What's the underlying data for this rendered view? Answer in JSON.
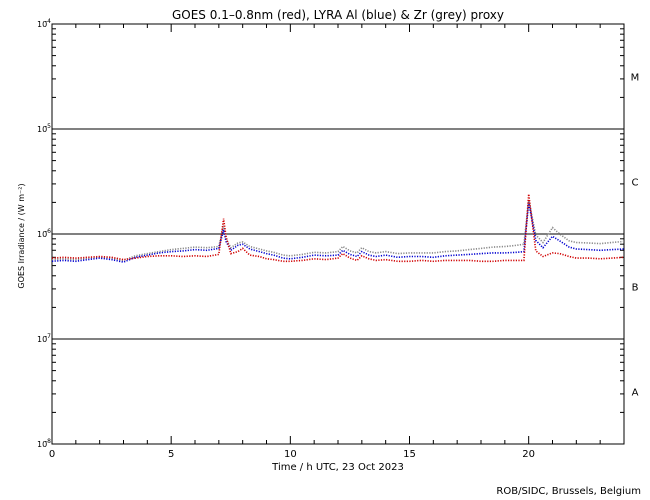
{
  "chart_data": {
    "type": "scatter",
    "title": "GOES 0.1–0.8nm (red), LYRA Al (blue) & Zr (grey) proxy",
    "xlabel": "Time / h UTC, 23 Oct 2023",
    "ylabel": "GOES Irradiance / (W m⁻²)",
    "credit": "ROB/SIDC, Brussels, Belgium",
    "xlim": [
      0,
      24
    ],
    "ylim": [
      1e-08,
      0.0001
    ],
    "yscale": "log",
    "x_ticks": [
      0,
      5,
      10,
      15,
      20
    ],
    "y_ticks": [
      {
        "value": 1e-08,
        "mant": "10",
        "exp": "-8"
      },
      {
        "value": 1e-07,
        "mant": "10",
        "exp": "-7"
      },
      {
        "value": 1e-06,
        "mant": "10",
        "exp": "-6"
      },
      {
        "value": 1e-05,
        "mant": "10",
        "exp": "-5"
      },
      {
        "value": 0.0001,
        "mant": "10",
        "exp": "-4"
      }
    ],
    "reference_lines": [
      1e-07,
      1e-06,
      1e-05
    ],
    "flare_classes": [
      {
        "label": "A",
        "value": 3.16e-08
      },
      {
        "label": "B",
        "value": 3.16e-07
      },
      {
        "label": "C",
        "value": 3.16e-06
      },
      {
        "label": "M",
        "value": 3.16e-05
      }
    ],
    "series": [
      {
        "color": "#d00000",
        "x": [
          0,
          0.5,
          1,
          1.5,
          2,
          2.5,
          3,
          3.5,
          4,
          4.5,
          5,
          5.5,
          6,
          6.5,
          7,
          7.2,
          7.3,
          7.5,
          7.8,
          8,
          8.3,
          8.7,
          9,
          9.3,
          9.7,
          10,
          10.5,
          11,
          11.5,
          12,
          12.2,
          12.5,
          12.8,
          13,
          13.3,
          13.6,
          14,
          14.5,
          15,
          15.5,
          16,
          16.5,
          17,
          17.5,
          18,
          18.5,
          19,
          19.5,
          19.8,
          20,
          20.3,
          20.6,
          21,
          21.3,
          21.7,
          22,
          22.5,
          23,
          23.5,
          24
        ],
        "y": [
          5.9e-07,
          6e-07,
          5.9e-07,
          6e-07,
          6.1e-07,
          6e-07,
          5.7e-07,
          5.9e-07,
          6.1e-07,
          6.2e-07,
          6.2e-07,
          6.1e-07,
          6.2e-07,
          6.1e-07,
          6.4e-07,
          1.4e-06,
          9.5e-07,
          6.5e-07,
          6.8e-07,
          7.3e-07,
          6.3e-07,
          6.1e-07,
          5.8e-07,
          5.7e-07,
          5.5e-07,
          5.5e-07,
          5.6e-07,
          5.8e-07,
          5.7e-07,
          5.9e-07,
          6.5e-07,
          5.9e-07,
          5.6e-07,
          6.2e-07,
          5.8e-07,
          5.6e-07,
          5.7e-07,
          5.5e-07,
          5.5e-07,
          5.6e-07,
          5.5e-07,
          5.6e-07,
          5.6e-07,
          5.6e-07,
          5.5e-07,
          5.5e-07,
          5.6e-07,
          5.6e-07,
          5.6e-07,
          2.4e-06,
          6.9e-07,
          6.1e-07,
          6.6e-07,
          6.5e-07,
          6.1e-07,
          5.9e-07,
          5.9e-07,
          5.8e-07,
          5.9e-07,
          6e-07
        ]
      },
      {
        "color": "#0000d0",
        "x": [
          0,
          0.5,
          1,
          1.5,
          2,
          2.5,
          3,
          3.5,
          4,
          4.5,
          5,
          5.5,
          6,
          6.5,
          7,
          7.2,
          7.3,
          7.5,
          7.8,
          8,
          8.3,
          8.7,
          9,
          9.3,
          9.7,
          10,
          10.5,
          11,
          11.5,
          12,
          12.2,
          12.5,
          12.8,
          13,
          13.3,
          13.6,
          14,
          14.5,
          15,
          15.5,
          16,
          16.5,
          17,
          17.5,
          18,
          18.5,
          19,
          19.5,
          19.8,
          20,
          20.3,
          20.6,
          21,
          21.3,
          21.7,
          22,
          22.5,
          23,
          23.5,
          24
        ],
        "y": [
          5.5e-07,
          5.6e-07,
          5.5e-07,
          5.7e-07,
          5.9e-07,
          5.7e-07,
          5.4e-07,
          6e-07,
          6.3e-07,
          6.6e-07,
          6.8e-07,
          6.9e-07,
          7.1e-07,
          7e-07,
          7.3e-07,
          1.1e-06,
          8.5e-07,
          7e-07,
          7.8e-07,
          8e-07,
          7.2e-07,
          6.8e-07,
          6.5e-07,
          6.3e-07,
          5.9e-07,
          5.8e-07,
          6e-07,
          6.3e-07,
          6.2e-07,
          6.3e-07,
          7e-07,
          6.4e-07,
          6.1e-07,
          6.8e-07,
          6.3e-07,
          6.1e-07,
          6.3e-07,
          6e-07,
          6.1e-07,
          6.1e-07,
          6e-07,
          6.2e-07,
          6.3e-07,
          6.4e-07,
          6.5e-07,
          6.6e-07,
          6.6e-07,
          6.7e-07,
          6.8e-07,
          2e-06,
          8.7e-07,
          7.4e-07,
          9.5e-07,
          8.6e-07,
          7.5e-07,
          7.2e-07,
          7.1e-07,
          7e-07,
          7.1e-07,
          7.2e-07
        ]
      },
      {
        "color": "#888888",
        "x": [
          0,
          0.5,
          1,
          1.5,
          2,
          2.5,
          3,
          3.5,
          4,
          4.5,
          5,
          5.5,
          6,
          6.5,
          7,
          7.2,
          7.3,
          7.5,
          7.8,
          8,
          8.3,
          8.7,
          9,
          9.3,
          9.7,
          10,
          10.5,
          11,
          11.5,
          12,
          12.2,
          12.5,
          12.8,
          13,
          13.3,
          13.6,
          14,
          14.5,
          15,
          15.5,
          16,
          16.5,
          17,
          17.5,
          18,
          18.5,
          19,
          19.5,
          19.8,
          20,
          20.3,
          20.6,
          21,
          21.3,
          21.7,
          22,
          22.5,
          23,
          23.5,
          24
        ],
        "y": [
          5.7e-07,
          5.8e-07,
          5.7e-07,
          5.9e-07,
          6e-07,
          5.9e-07,
          5.6e-07,
          6.2e-07,
          6.5e-07,
          6.8e-07,
          7.1e-07,
          7.3e-07,
          7.5e-07,
          7.4e-07,
          7.6e-07,
          1.2e-06,
          9e-07,
          7.4e-07,
          8.2e-07,
          8.4e-07,
          7.6e-07,
          7.2e-07,
          6.9e-07,
          6.7e-07,
          6.3e-07,
          6.2e-07,
          6.4e-07,
          6.7e-07,
          6.6e-07,
          6.8e-07,
          7.6e-07,
          6.9e-07,
          6.6e-07,
          7.4e-07,
          6.8e-07,
          6.6e-07,
          6.8e-07,
          6.5e-07,
          6.6e-07,
          6.6e-07,
          6.6e-07,
          6.8e-07,
          6.9e-07,
          7.1e-07,
          7.3e-07,
          7.5e-07,
          7.6e-07,
          7.8e-07,
          8e-07,
          2.1e-06,
          9.8e-07,
          8.3e-07,
          1.15e-06,
          1e-06,
          8.6e-07,
          8.3e-07,
          8.2e-07,
          8.1e-07,
          8.3e-07,
          8.5e-07
        ]
      }
    ]
  }
}
